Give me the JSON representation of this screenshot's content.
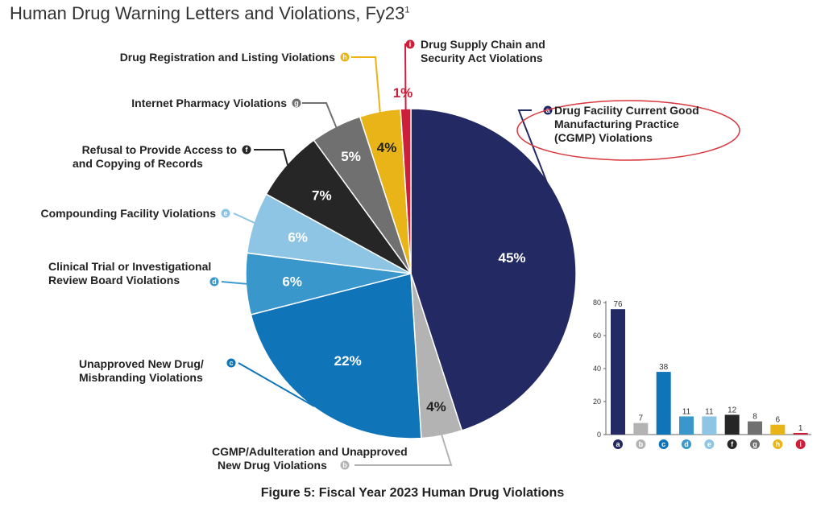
{
  "title": "Human Drug Warning Letters and Violations, Fy23",
  "title_sup": "1",
  "caption": "Figure 5: Fiscal Year 2023 Human Drug Violations",
  "colors": {
    "a": "#232a63",
    "b": "#b3b3b3",
    "c": "#0f75b8",
    "d": "#3a97cc",
    "e": "#8ec5e4",
    "f": "#262626",
    "g": "#707070",
    "h": "#e8b418",
    "i": "#cc1f3a",
    "highlight_ellipse": "#d9363e"
  },
  "chart_data": [
    {
      "type": "pie",
      "slices": [
        {
          "key": "a",
          "label": "Drug Facility Current Good Manufacturing Practice (CGMP) Violations",
          "value": 45,
          "pct_label": "45%"
        },
        {
          "key": "b",
          "label": "CGMP/Adulteration and Unapproved New Drug Violations",
          "value": 4,
          "pct_label": "4%"
        },
        {
          "key": "c",
          "label": "Unapproved New Drug/ Misbranding Violations",
          "value": 22,
          "pct_label": "22%"
        },
        {
          "key": "d",
          "label": "Clinical Trial or Investigational Review Board Violations",
          "value": 6,
          "pct_label": "6%"
        },
        {
          "key": "e",
          "label": "Compounding Facility Violations",
          "value": 6,
          "pct_label": "6%"
        },
        {
          "key": "f",
          "label": "Refusal to Provide Access to and Copying of Records",
          "value": 7,
          "pct_label": "7%"
        },
        {
          "key": "g",
          "label": "Internet Pharmacy Violations",
          "value": 5,
          "pct_label": "5%"
        },
        {
          "key": "h",
          "label": "Drug Registration and Listing Violations",
          "value": 4,
          "pct_label": "4%"
        },
        {
          "key": "i",
          "label": "Drug Supply Chain and Security Act Violations",
          "value": 1,
          "pct_label": "1%"
        }
      ]
    },
    {
      "type": "bar",
      "categories": [
        "a",
        "b",
        "c",
        "d",
        "e",
        "f",
        "g",
        "h",
        "i"
      ],
      "values": [
        76,
        7,
        38,
        11,
        11,
        12,
        8,
        6,
        1
      ],
      "ylim": [
        0,
        80
      ],
      "yticks": [
        "0",
        "20",
        "40",
        "60",
        "80"
      ]
    }
  ]
}
